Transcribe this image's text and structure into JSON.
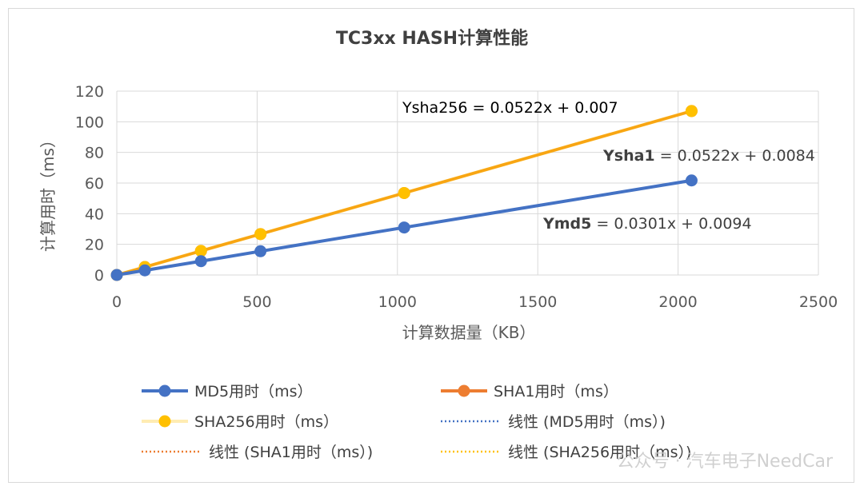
{
  "chart_data": {
    "type": "scatter",
    "title": "TC3xx HASH计算性能",
    "xlabel": "计算数据量（KB）",
    "ylabel": "计算用时（ms）",
    "xlim": [
      0,
      2500
    ],
    "ylim": [
      0,
      120
    ],
    "x_ticks": [
      "0",
      "500",
      "1000",
      "1500",
      "2000",
      "2500"
    ],
    "y_ticks": [
      "0",
      "20",
      "40",
      "60",
      "80",
      "100",
      "120"
    ],
    "grid": "vertical and horizontal gridlines",
    "legend_position": "bottom",
    "x": [
      0,
      100,
      300,
      512,
      1024,
      2048
    ],
    "series": [
      {
        "name": "MD5用时（ms）",
        "color": "#4472c4",
        "values": [
          0,
          3,
          9,
          15.5,
          31,
          61.7
        ]
      },
      {
        "name": "SHA1用时（ms）",
        "color": "#ed7d31",
        "values": [
          0,
          5.2,
          15.7,
          26.7,
          53.5,
          107
        ]
      },
      {
        "name": "SHA256用时（ms）",
        "color": "#ffc000",
        "values": [
          0,
          5.2,
          15.7,
          26.7,
          53.5,
          107
        ]
      }
    ],
    "trendlines": [
      {
        "name": "线性 (MD5用时（ms）)",
        "color": "#4472c4",
        "slope": 0.0301,
        "intercept": 0.0094
      },
      {
        "name": "线性 (SHA1用时（ms）)",
        "color": "#ed7d31",
        "slope": 0.0522,
        "intercept": 0.0084
      },
      {
        "name": "线性 (SHA256用时（ms）)",
        "color": "#ffc000",
        "slope": 0.0522,
        "intercept": 0.007
      }
    ],
    "annotations": [
      {
        "bold": "Ysha256",
        "text": " = 0.0522x + 0.007"
      },
      {
        "bold": "Ysha1",
        "text": " = 0.0522x + 0.0084"
      },
      {
        "bold": "Ymd5",
        "text": " = 0.0301x + 0.0094"
      }
    ]
  },
  "watermark": "公众号 · 汽车电子NeedCar"
}
